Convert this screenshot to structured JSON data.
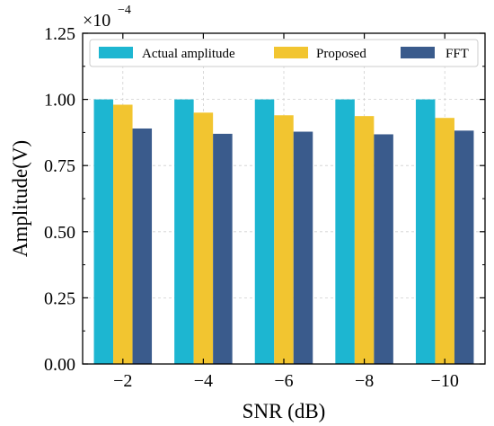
{
  "chart_data": {
    "type": "bar",
    "xlabel": "SNR (dB)",
    "ylabel": "Amplitude(V)",
    "categories": [
      "−2",
      "−4",
      "−6",
      "−8",
      "−10"
    ],
    "series": [
      {
        "name": "Actual amplitude",
        "color": "#1db6d1",
        "values": [
          1.0,
          1.0,
          1.0,
          1.0,
          1.0
        ]
      },
      {
        "name": "Proposed",
        "color": "#f2c530",
        "values": [
          0.98,
          0.95,
          0.94,
          0.937,
          0.93
        ]
      },
      {
        "name": "FFT",
        "color": "#3a5b8c",
        "values": [
          0.89,
          0.87,
          0.878,
          0.868,
          0.882
        ]
      }
    ],
    "ylim": [
      0,
      1.25
    ],
    "yticks": [
      "0.00",
      "0.25",
      "0.50",
      "0.75",
      "1.00",
      "1.25"
    ],
    "ytick_values": [
      0,
      0.25,
      0.5,
      0.75,
      1.0,
      1.25
    ],
    "scale_base": "×10",
    "scale_exponent": "−4",
    "grid": true,
    "legend_position": "top"
  }
}
